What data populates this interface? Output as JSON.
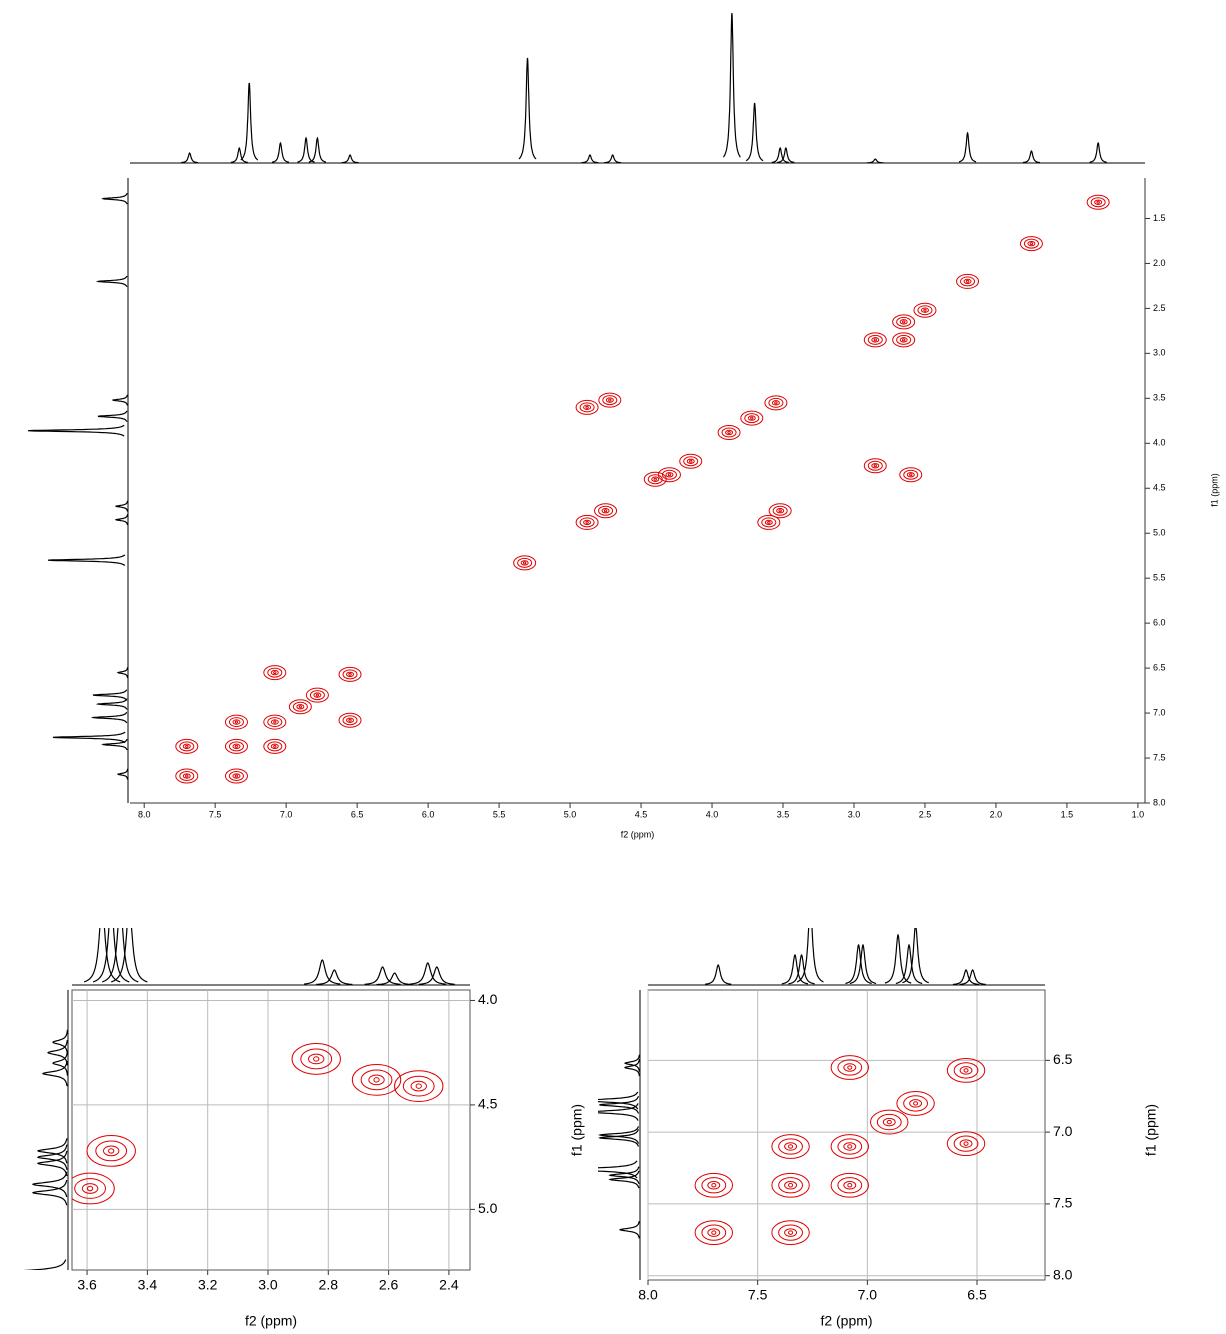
{
  "chart_data": [
    {
      "type": "nmr-2d",
      "xlabel": "f2 (ppm)",
      "ylabel": "f1 (ppm)",
      "color": "#e00000",
      "trace_color": "#000000",
      "grid": false,
      "xlim": [
        8.1,
        0.95
      ],
      "ylim": [
        1.05,
        8.0
      ],
      "xticks": [
        {
          "value": 8,
          "label": "8.0"
        },
        7.5,
        {
          "value": 7,
          "label": "7.0"
        },
        6.5,
        {
          "value": 6,
          "label": "6.0"
        },
        5.5,
        {
          "value": 5,
          "label": "5.0"
        },
        4.5,
        {
          "value": 4,
          "label": "4.0"
        },
        3.5,
        {
          "value": 3,
          "label": "3.0"
        },
        2.5,
        {
          "value": 2,
          "label": "2.0"
        },
        1.5,
        {
          "value": 1,
          "label": "1.0"
        }
      ],
      "yticks": [
        1.5,
        {
          "value": 2,
          "label": "2.0"
        },
        2.5,
        {
          "value": 3,
          "label": "3.0"
        },
        3.5,
        {
          "value": 4,
          "label": "4.0"
        },
        4.5,
        {
          "value": 5,
          "label": "5.0"
        },
        5.5,
        {
          "value": 6,
          "label": "6.0"
        },
        6.5,
        {
          "value": 7,
          "label": "7.0"
        },
        7.5,
        {
          "value": 8,
          "label": "8.0"
        }
      ],
      "peaks": {
        "x": [
          7.7,
          7.7,
          7.35,
          7.35,
          7.35,
          7.08,
          7.08,
          7.08,
          6.9,
          6.78,
          6.55,
          6.55,
          5.32,
          4.88,
          4.75,
          4.88,
          4.72,
          3.6,
          3.52,
          4.4,
          4.3,
          4.15,
          3.88,
          3.72,
          3.55,
          2.85,
          2.6,
          2.85,
          2.65,
          2.65,
          2.5,
          2.2,
          1.75,
          1.28
        ],
        "y": [
          7.7,
          7.37,
          7.7,
          7.37,
          7.1,
          7.37,
          7.1,
          6.55,
          6.93,
          6.8,
          6.57,
          7.08,
          5.33,
          4.88,
          4.75,
          3.6,
          3.52,
          4.88,
          4.75,
          4.4,
          4.35,
          4.2,
          3.88,
          3.72,
          3.55,
          4.25,
          4.35,
          2.85,
          2.65,
          2.85,
          2.52,
          2.2,
          1.78,
          1.32
        ]
      },
      "top_projection": {
        "shifts": [
          7.68,
          7.33,
          7.26,
          7.04,
          6.86,
          6.78,
          6.55,
          5.3,
          4.86,
          4.7,
          3.86,
          3.7,
          3.52,
          3.48,
          2.85,
          2.2,
          1.75,
          1.28
        ],
        "intensities": [
          10,
          15,
          80,
          20,
          25,
          25,
          8,
          105,
          8,
          8,
          150,
          60,
          15,
          15,
          4,
          30,
          12,
          20
        ]
      },
      "left_projection": {
        "shifts": [
          7.68,
          7.35,
          7.27,
          7.05,
          6.9,
          6.8,
          6.55,
          5.3,
          4.85,
          4.7,
          3.86,
          3.7,
          3.52,
          2.2,
          1.28
        ],
        "intensities": [
          10,
          25,
          75,
          35,
          30,
          35,
          10,
          80,
          12,
          12,
          100,
          30,
          15,
          30,
          25
        ]
      }
    },
    {
      "type": "nmr-2d",
      "xlabel": "f2 (ppm)",
      "ylabel": "f1 (ppm)",
      "color": "#e00000",
      "trace_color": "#000000",
      "grid": true,
      "xlim": [
        3.65,
        2.33
      ],
      "ylim": [
        3.95,
        5.29
      ],
      "xticks": [
        3.6,
        3.4,
        3.2,
        {
          "value": 3,
          "label": "3.0"
        },
        2.8,
        2.6,
        2.4
      ],
      "yticks": [
        {
          "value": 4,
          "label": "4.0"
        },
        4.5,
        {
          "value": 5,
          "label": "5.0"
        }
      ],
      "peaks": {
        "x": [
          3.59,
          3.52,
          2.84,
          2.64,
          2.5
        ],
        "y": [
          4.9,
          4.72,
          4.28,
          4.38,
          4.41
        ]
      },
      "top_projection": {
        "shifts": [
          3.55,
          3.52,
          3.49,
          3.46,
          2.82,
          2.78,
          2.62,
          2.58,
          2.47,
          2.44
        ],
        "intensities": [
          80,
          80,
          80,
          80,
          25,
          15,
          18,
          12,
          22,
          18
        ]
      },
      "left_projection": {
        "shifts": [
          4.2,
          4.25,
          4.3,
          4.35,
          4.72,
          4.75,
          4.78,
          4.88,
          4.92,
          5.3
        ],
        "intensities": [
          15,
          20,
          15,
          25,
          30,
          30,
          30,
          35,
          35,
          60
        ]
      }
    },
    {
      "type": "nmr-2d",
      "xlabel": "f2 (ppm)",
      "color": "#e00000",
      "trace_color": "#000000",
      "grid": true,
      "ylabel": "f1 (ppm)",
      "xlim": [
        8.0,
        6.19
      ],
      "ylim": [
        6.01,
        8.03
      ],
      "xticks": [
        {
          "value": 8,
          "label": "8.0"
        },
        7.5,
        {
          "value": 7,
          "label": "7.0"
        },
        6.5
      ],
      "yticks": [
        6.5,
        {
          "value": 7,
          "label": "7.0"
        },
        7.5,
        {
          "value": 8,
          "label": "8.0"
        }
      ],
      "peaks": {
        "x": [
          7.7,
          7.7,
          7.35,
          7.35,
          7.35,
          7.08,
          7.08,
          7.08,
          6.9,
          6.78,
          6.55,
          6.55
        ],
        "y": [
          7.7,
          7.37,
          7.7,
          7.37,
          7.1,
          7.37,
          7.1,
          6.55,
          6.93,
          6.8,
          6.57,
          7.08
        ]
      },
      "top_projection": {
        "shifts": [
          7.68,
          7.33,
          7.3,
          7.26,
          7.04,
          7.02,
          6.86,
          6.81,
          6.78,
          6.55,
          6.52
        ],
        "intensities": [
          20,
          30,
          30,
          80,
          40,
          40,
          50,
          40,
          60,
          15,
          15
        ]
      },
      "left_projection": {
        "shifts": [
          7.68,
          7.33,
          7.3,
          7.26,
          7.04,
          7.02,
          6.86,
          6.81,
          6.78,
          6.55,
          6.52
        ],
        "intensities": [
          20,
          30,
          30,
          80,
          40,
          40,
          50,
          40,
          60,
          15,
          15
        ]
      }
    }
  ]
}
